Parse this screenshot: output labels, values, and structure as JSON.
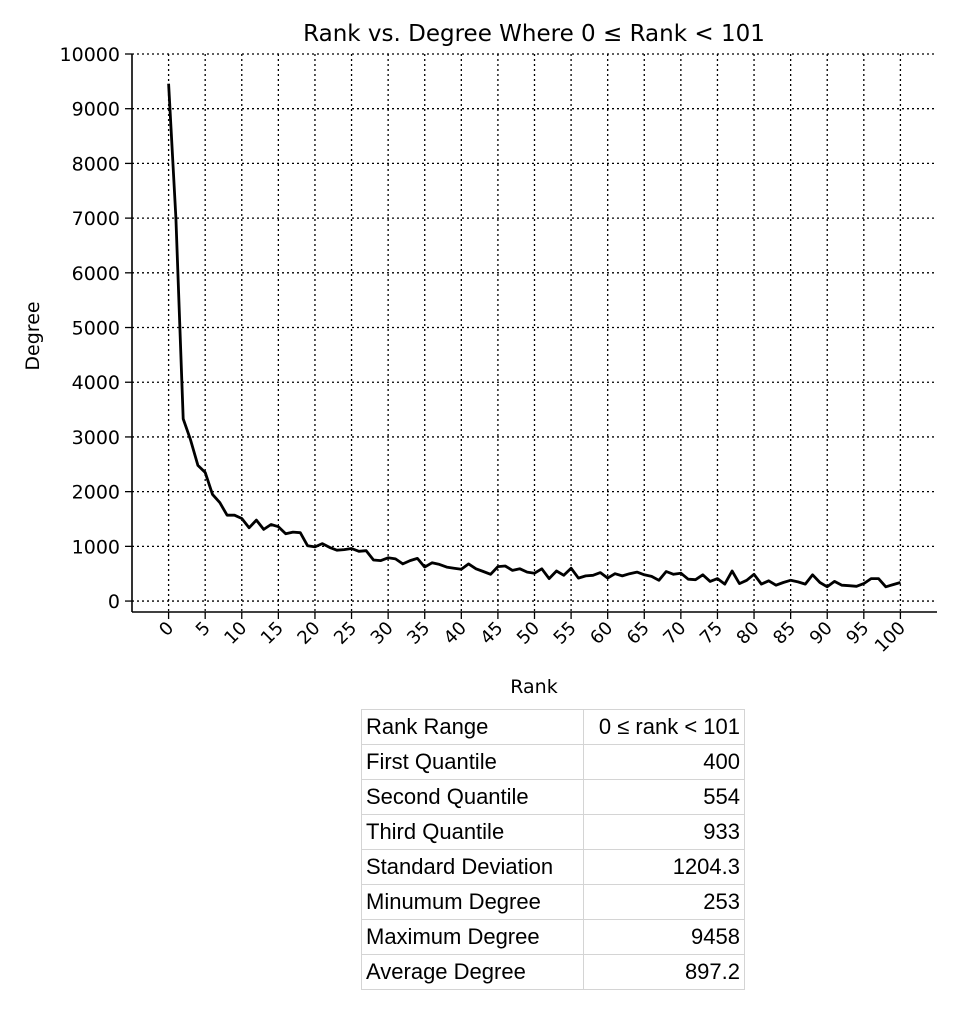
{
  "chart_data": {
    "type": "line",
    "title": "Rank vs. Degree Where 0 ≤ Rank < 101",
    "xlabel": "Rank",
    "ylabel": "Degree",
    "xlim": [
      -5,
      105
    ],
    "ylim": [
      -200,
      10000
    ],
    "x_ticks": [
      0,
      5,
      10,
      15,
      20,
      25,
      30,
      35,
      40,
      45,
      50,
      55,
      60,
      65,
      70,
      75,
      80,
      85,
      90,
      95,
      100
    ],
    "y_ticks": [
      0,
      1000,
      2000,
      3000,
      4000,
      5000,
      6000,
      7000,
      8000,
      9000,
      10000
    ],
    "grid": true,
    "line_color": "#000000",
    "series": [
      {
        "x": [
          0,
          1,
          2,
          3,
          4,
          5,
          6,
          7,
          8,
          9,
          10,
          11,
          12,
          13,
          14,
          15,
          16,
          17,
          18,
          19,
          20,
          21,
          22,
          23,
          24,
          25,
          26,
          27,
          28,
          29,
          30,
          31,
          32,
          33,
          34,
          35,
          36,
          37,
          38,
          39,
          40,
          41,
          42,
          43,
          44,
          45,
          46,
          47,
          48,
          49,
          50,
          51,
          52,
          53,
          54,
          55,
          56,
          57,
          58,
          59,
          60,
          61,
          62,
          63,
          64,
          65,
          66,
          67,
          68,
          69,
          70,
          71,
          72,
          73,
          74,
          75,
          76,
          77,
          78,
          79,
          80,
          81,
          82,
          83,
          84,
          85,
          86,
          87,
          88,
          89,
          90,
          91,
          92,
          93,
          94,
          95,
          96,
          97,
          98,
          99,
          100
        ],
        "values": [
          9458,
          7000,
          3330,
          2950,
          2480,
          2350,
          1950,
          1800,
          1570,
          1570,
          1510,
          1340,
          1480,
          1310,
          1400,
          1360,
          1230,
          1260,
          1250,
          1010,
          990,
          1050,
          980,
          930,
          940,
          960,
          910,
          920,
          750,
          740,
          790,
          770,
          680,
          740,
          780,
          620,
          700,
          670,
          620,
          600,
          580,
          680,
          590,
          540,
          490,
          630,
          640,
          560,
          590,
          530,
          510,
          590,
          410,
          550,
          470,
          600,
          420,
          460,
          470,
          520,
          420,
          500,
          460,
          500,
          530,
          480,
          450,
          380,
          540,
          490,
          510,
          400,
          390,
          480,
          360,
          410,
          310,
          550,
          320,
          380,
          490,
          310,
          370,
          290,
          340,
          380,
          350,
          310,
          480,
          340,
          260,
          360,
          290,
          280,
          270,
          320,
          410,
          410,
          260,
          300,
          340
        ]
      }
    ]
  },
  "stats_table": [
    [
      "Rank Range",
      "0 ≤ rank < 101"
    ],
    [
      "First Quantile",
      "400"
    ],
    [
      "Second Quantile",
      "554"
    ],
    [
      "Third Quantile",
      "933"
    ],
    [
      "Standard Deviation",
      "1204.3"
    ],
    [
      "Minumum Degree",
      "253"
    ],
    [
      "Maximum Degree",
      "9458"
    ],
    [
      "Average Degree",
      "897.2"
    ]
  ]
}
